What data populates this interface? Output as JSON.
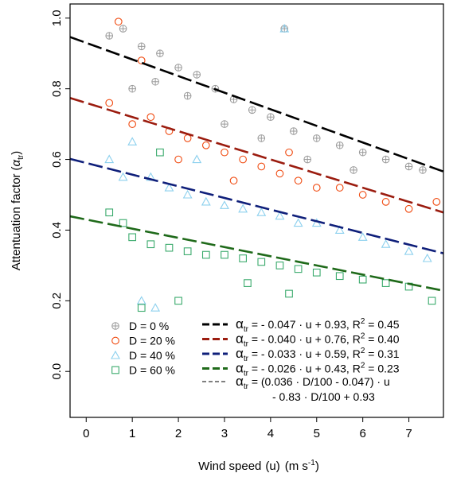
{
  "chart_data": {
    "type": "scatter",
    "xlabel": "Wind speed",
    "xlabel_var": "(u)",
    "xlabel_unit": "(m s",
    "xlabel_unit_sup": "-1",
    "xlabel_unit_close": ")",
    "ylabel": "Attentuation factor",
    "ylabel_sym": "α",
    "ylabel_sub": "tr",
    "xlim": [
      -0.35,
      7.75
    ],
    "ylim": [
      -0.13,
      1.04
    ],
    "xticks": [
      "0",
      "1",
      "2",
      "3",
      "4",
      "5",
      "6",
      "7"
    ],
    "yticks": [
      "0.0",
      "0.2",
      "0.4",
      "0.6",
      "0.8",
      "1.0"
    ],
    "grid": false,
    "legend_position": "bottom-center",
    "marker_series": [
      {
        "name": "D = 0 %",
        "marker": "circle-plus",
        "color": "#9a9a9a",
        "points": [
          [
            0.5,
            0.95
          ],
          [
            0.8,
            0.97
          ],
          [
            1.2,
            0.92
          ],
          [
            1.6,
            0.9
          ],
          [
            2.0,
            0.86
          ],
          [
            2.4,
            0.84
          ],
          [
            2.8,
            0.8
          ],
          [
            3.2,
            0.77
          ],
          [
            3.6,
            0.74
          ],
          [
            4.0,
            0.72
          ],
          [
            4.3,
            0.97
          ],
          [
            4.5,
            0.68
          ],
          [
            5.0,
            0.66
          ],
          [
            5.5,
            0.64
          ],
          [
            6.0,
            0.62
          ],
          [
            6.5,
            0.6
          ],
          [
            7.0,
            0.58
          ],
          [
            7.3,
            0.57
          ],
          [
            1.0,
            0.8
          ],
          [
            1.5,
            0.82
          ],
          [
            2.2,
            0.78
          ],
          [
            3.0,
            0.7
          ],
          [
            3.8,
            0.66
          ],
          [
            4.8,
            0.6
          ],
          [
            5.8,
            0.57
          ]
        ]
      },
      {
        "name": "D = 20 %",
        "marker": "circle",
        "color": "#f04a10",
        "points": [
          [
            0.5,
            0.76
          ],
          [
            0.7,
            0.99
          ],
          [
            1.0,
            0.7
          ],
          [
            1.4,
            0.72
          ],
          [
            1.8,
            0.68
          ],
          [
            2.2,
            0.66
          ],
          [
            2.6,
            0.64
          ],
          [
            3.0,
            0.62
          ],
          [
            3.4,
            0.6
          ],
          [
            3.8,
            0.58
          ],
          [
            4.2,
            0.56
          ],
          [
            4.6,
            0.54
          ],
          [
            5.0,
            0.52
          ],
          [
            5.5,
            0.52
          ],
          [
            6.0,
            0.5
          ],
          [
            6.5,
            0.48
          ],
          [
            7.0,
            0.46
          ],
          [
            7.6,
            0.48
          ],
          [
            1.2,
            0.88
          ],
          [
            2.0,
            0.6
          ],
          [
            3.2,
            0.54
          ],
          [
            4.4,
            0.62
          ]
        ]
      },
      {
        "name": "D = 40 %",
        "marker": "triangle",
        "color": "#8cd0ee",
        "points": [
          [
            0.5,
            0.6
          ],
          [
            0.8,
            0.55
          ],
          [
            1.0,
            0.65
          ],
          [
            1.4,
            0.55
          ],
          [
            1.8,
            0.52
          ],
          [
            2.2,
            0.5
          ],
          [
            2.6,
            0.48
          ],
          [
            3.0,
            0.47
          ],
          [
            3.4,
            0.46
          ],
          [
            3.8,
            0.45
          ],
          [
            4.2,
            0.44
          ],
          [
            4.6,
            0.42
          ],
          [
            5.0,
            0.42
          ],
          [
            5.5,
            0.4
          ],
          [
            6.0,
            0.38
          ],
          [
            6.5,
            0.36
          ],
          [
            7.0,
            0.34
          ],
          [
            7.4,
            0.32
          ],
          [
            1.2,
            0.2
          ],
          [
            2.4,
            0.6
          ],
          [
            4.3,
            0.97
          ],
          [
            1.5,
            0.18
          ]
        ]
      },
      {
        "name": "D = 60 %",
        "marker": "square",
        "color": "#3aaa6c",
        "points": [
          [
            0.5,
            0.45
          ],
          [
            0.8,
            0.42
          ],
          [
            1.0,
            0.38
          ],
          [
            1.4,
            0.36
          ],
          [
            1.8,
            0.35
          ],
          [
            2.2,
            0.34
          ],
          [
            2.6,
            0.33
          ],
          [
            3.0,
            0.33
          ],
          [
            3.4,
            0.32
          ],
          [
            3.8,
            0.31
          ],
          [
            4.2,
            0.3
          ],
          [
            4.6,
            0.29
          ],
          [
            5.0,
            0.28
          ],
          [
            5.5,
            0.27
          ],
          [
            6.0,
            0.26
          ],
          [
            6.5,
            0.25
          ],
          [
            7.0,
            0.24
          ],
          [
            7.5,
            0.2
          ],
          [
            1.2,
            0.18
          ],
          [
            1.6,
            0.62
          ],
          [
            2.0,
            0.2
          ],
          [
            3.5,
            0.25
          ],
          [
            4.4,
            0.22
          ]
        ]
      }
    ],
    "fit_lines": [
      {
        "color": "#000000",
        "slope": -0.047,
        "intercept": 0.93,
        "dash": "18 6",
        "inner_dash": "",
        "label_pre": "α",
        "label_sub": "tr",
        "label_post": " = - 0.047 · u + 0.93, R",
        "label_sup": "2",
        "label_end": " = 0.45"
      },
      {
        "color": "#9b1c0f",
        "slope": -0.04,
        "intercept": 0.76,
        "dash": "18 6",
        "inner_dash": "",
        "label_pre": "α",
        "label_sub": "tr",
        "label_post": " = - 0.040 · u + 0.76, R",
        "label_sup": "2",
        "label_end": " = 0.40"
      },
      {
        "color": "#0f1f7a",
        "slope": -0.033,
        "intercept": 0.59,
        "dash": "18 6",
        "inner_dash": "",
        "label_pre": "α",
        "label_sub": "tr",
        "label_post": " = - 0.033 · u + 0.59, R",
        "label_sup": "2",
        "label_end": " = 0.31"
      },
      {
        "color": "#1f6a1a",
        "slope": -0.026,
        "intercept": 0.43,
        "dash": "18 6",
        "inner_dash": "",
        "label_pre": "α",
        "label_sub": "tr",
        "label_post": " = - 0.026 · u + 0.43, R",
        "label_sup": "2",
        "label_end": " = 0.23"
      }
    ],
    "general_eq": {
      "line1_pre": "α",
      "line1_sub": "tr",
      "line1_post": " = (0.036 · D/100 - 0.047) · u",
      "line2": "- 0.83 · D/100 + 0.93"
    }
  }
}
